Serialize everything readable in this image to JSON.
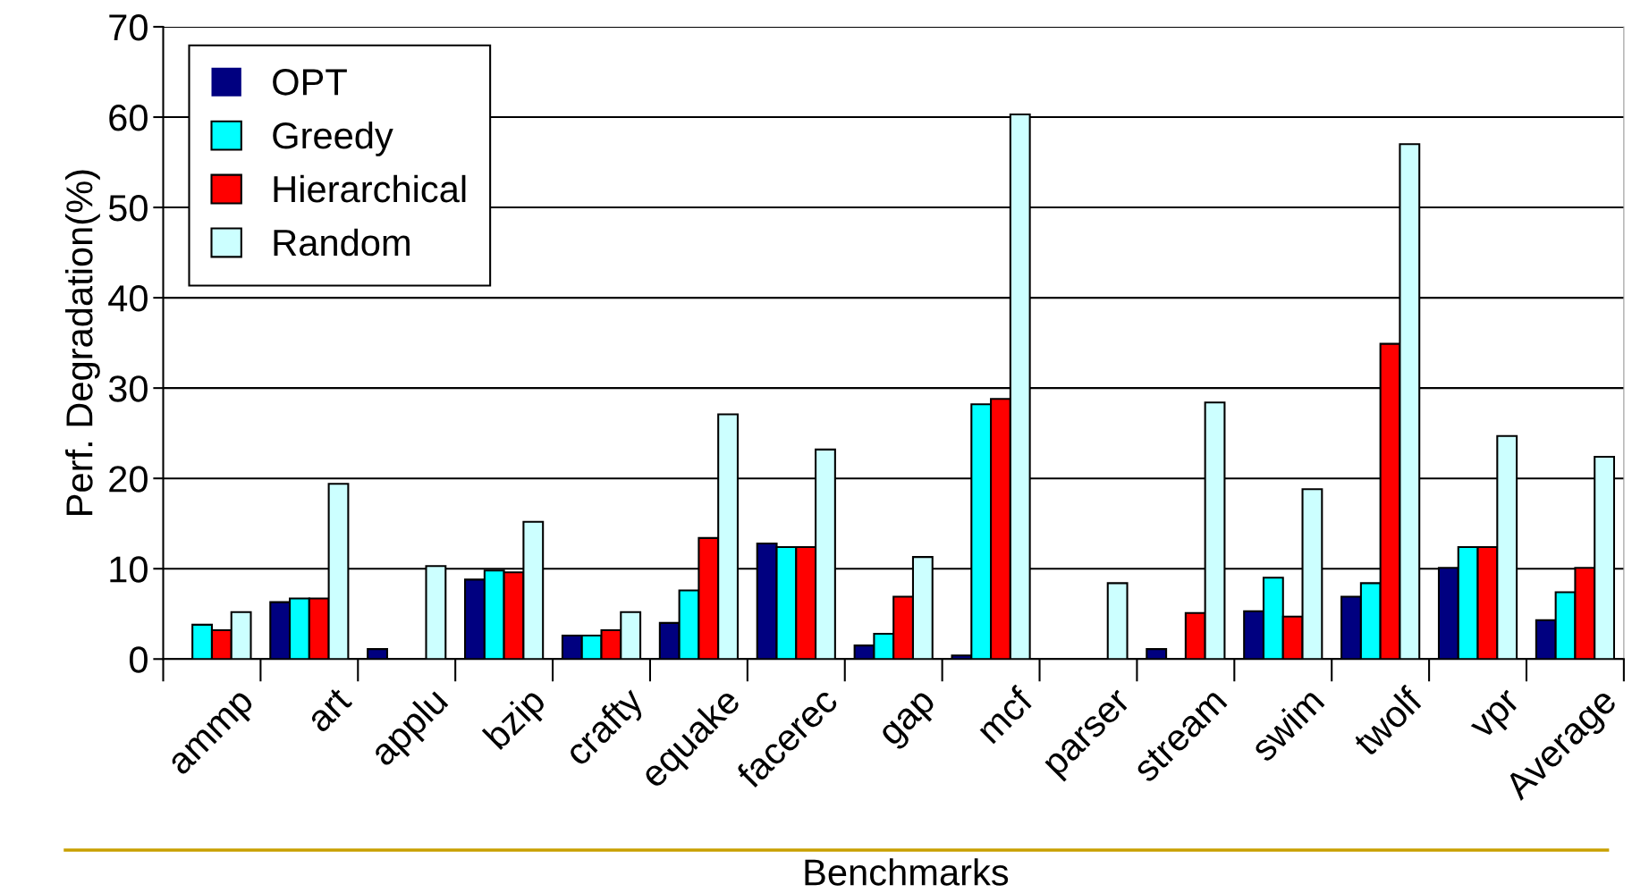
{
  "chart_data": {
    "type": "bar",
    "xlabel": "Benchmarks",
    "ylabel": "Perf. Degradation(%)",
    "categories": [
      "ammp",
      "art",
      "applu",
      "bzip",
      "crafty",
      "equake",
      "facerec",
      "gap",
      "mcf",
      "parser",
      "stream",
      "swim",
      "twolf",
      "vpr",
      "Average"
    ],
    "series": [
      {
        "name": "OPT",
        "color": "#000080",
        "values": [
          0,
          6.3,
          1.1,
          8.8,
          2.6,
          4.0,
          12.8,
          1.5,
          0.4,
          0,
          1.1,
          5.3,
          6.9,
          10.1,
          4.3
        ]
      },
      {
        "name": "Greedy",
        "color": "#00ffff",
        "values": [
          3.8,
          6.7,
          0,
          9.8,
          2.6,
          7.6,
          12.4,
          2.8,
          28.2,
          0,
          0,
          9.0,
          8.4,
          12.4,
          7.4
        ]
      },
      {
        "name": "Hierarchical",
        "color": "#ff0000",
        "values": [
          3.2,
          6.7,
          0,
          9.6,
          3.2,
          13.4,
          12.4,
          6.9,
          28.8,
          0,
          5.1,
          4.7,
          34.9,
          12.4,
          10.1
        ]
      },
      {
        "name": "Random",
        "color": "#ccffff",
        "values": [
          5.2,
          19.4,
          10.3,
          15.2,
          5.2,
          27.1,
          23.2,
          11.3,
          60.3,
          8.4,
          28.4,
          18.8,
          57.0,
          24.7,
          22.4
        ]
      }
    ],
    "ylim": [
      0,
      70
    ],
    "yticks": [
      0,
      10,
      20,
      30,
      40,
      50,
      60,
      70
    ],
    "grid": "y",
    "legend": "top left"
  }
}
